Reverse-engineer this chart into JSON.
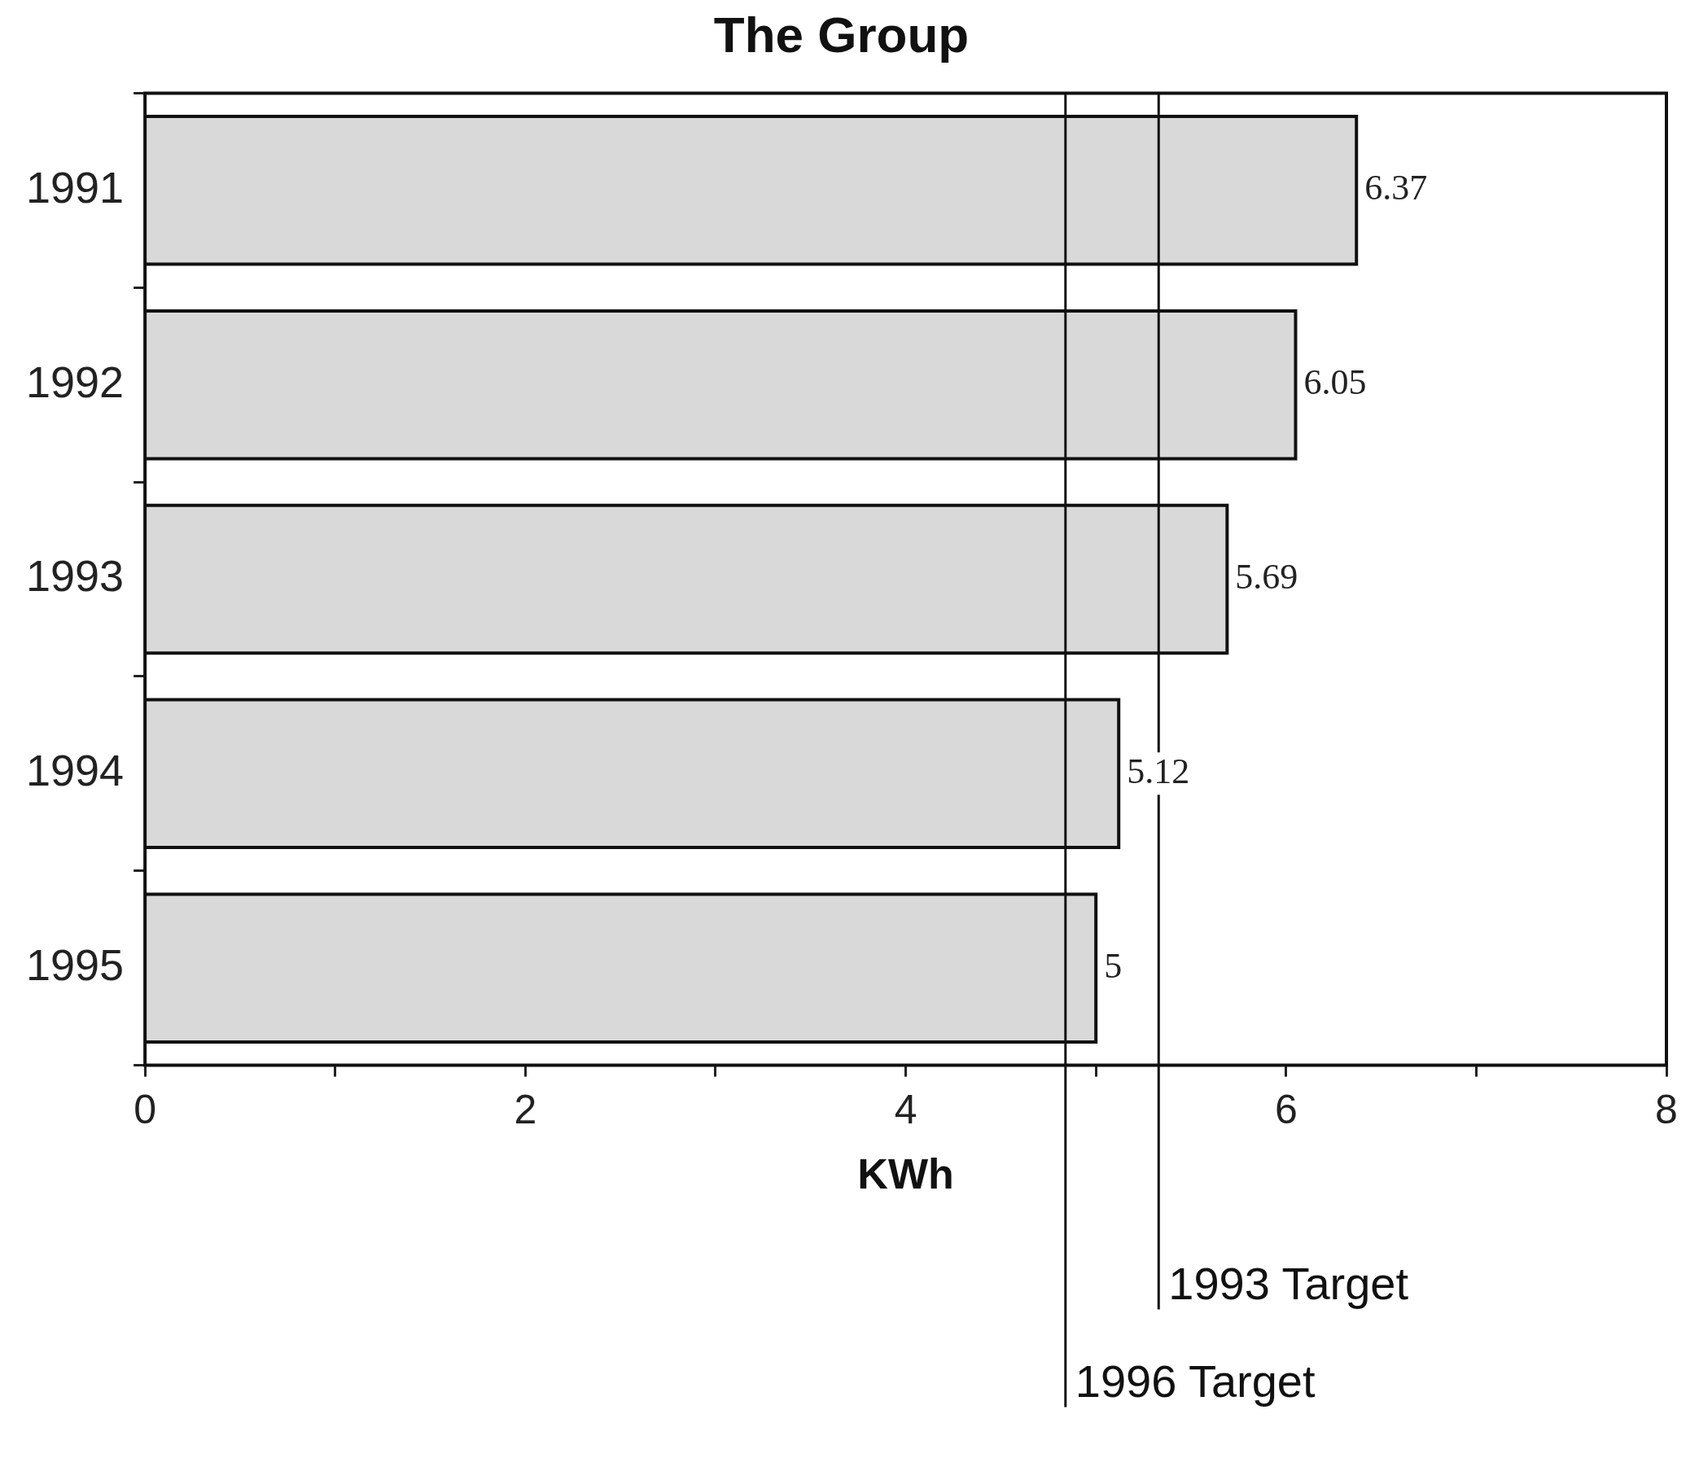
{
  "chart_data": {
    "type": "bar",
    "orientation": "horizontal",
    "title": "The Group",
    "xlabel": "KWh",
    "categories": [
      "1991",
      "1992",
      "1993",
      "1994",
      "1995"
    ],
    "values": [
      6.37,
      6.05,
      5.69,
      5.12,
      5
    ],
    "color": "#d9d9d9",
    "data_labels": true,
    "xlim": [
      0,
      8
    ],
    "xticks": [
      0,
      {
        "value": 1,
        "label": null
      },
      2,
      {
        "value": 3,
        "label": null
      },
      4,
      {
        "value": 5,
        "label": null
      },
      6,
      {
        "value": 7,
        "label": null
      },
      8
    ],
    "ref_lines": [
      {
        "axis": "x",
        "value": 5.33,
        "label": "1993 Target"
      },
      {
        "axis": "x",
        "value": 4.84,
        "label": "1996 Target"
      }
    ],
    "grid": false,
    "legend": false
  }
}
